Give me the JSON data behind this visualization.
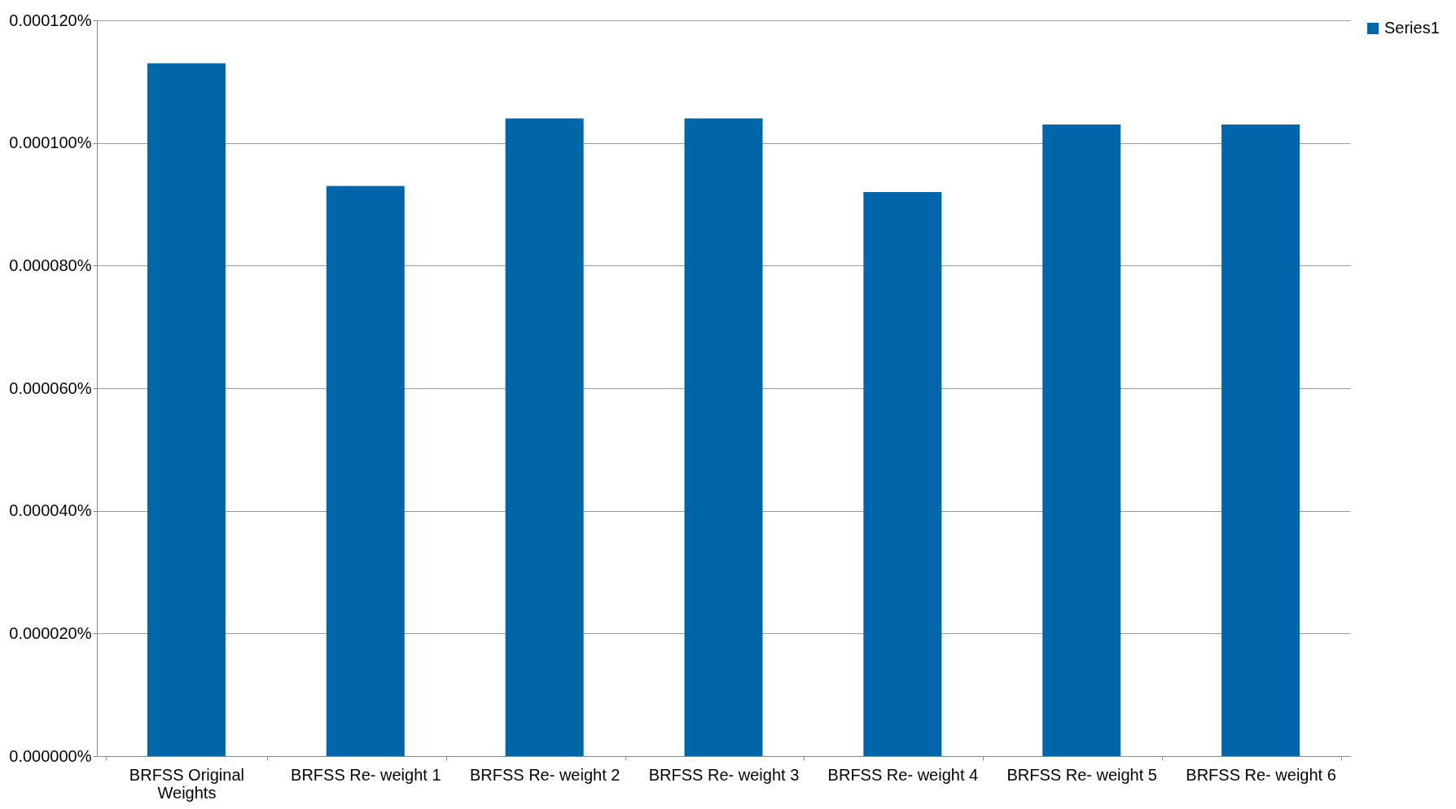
{
  "chart_data": {
    "type": "bar",
    "categories": [
      "BRFSS Original Weights",
      "BRFSS Re- weight 1",
      "BRFSS Re- weight 2",
      "BRFSS Re- weight 3",
      "BRFSS Re- weight 4",
      "BRFSS Re- weight 5",
      "BRFSS Re- weight 6"
    ],
    "series": [
      {
        "name": "Series1",
        "color": "#0066aa",
        "values": [
          0.000113,
          9.3e-05,
          0.000104,
          0.000104,
          9.2e-05,
          0.000103,
          0.000103
        ]
      }
    ],
    "ylim": [
      0,
      0.00012
    ],
    "yticks": [
      {
        "value": 0,
        "label": "0.000000%"
      },
      {
        "value": 2e-05,
        "label": "0.000020%"
      },
      {
        "value": 4e-05,
        "label": "0.000040%"
      },
      {
        "value": 6e-05,
        "label": "0.000060%"
      },
      {
        "value": 8e-05,
        "label": "0.000080%"
      },
      {
        "value": 0.0001,
        "label": "0.000100%"
      },
      {
        "value": 0.00012,
        "label": "0.000120%"
      }
    ],
    "grid": "y",
    "legend": "right"
  }
}
